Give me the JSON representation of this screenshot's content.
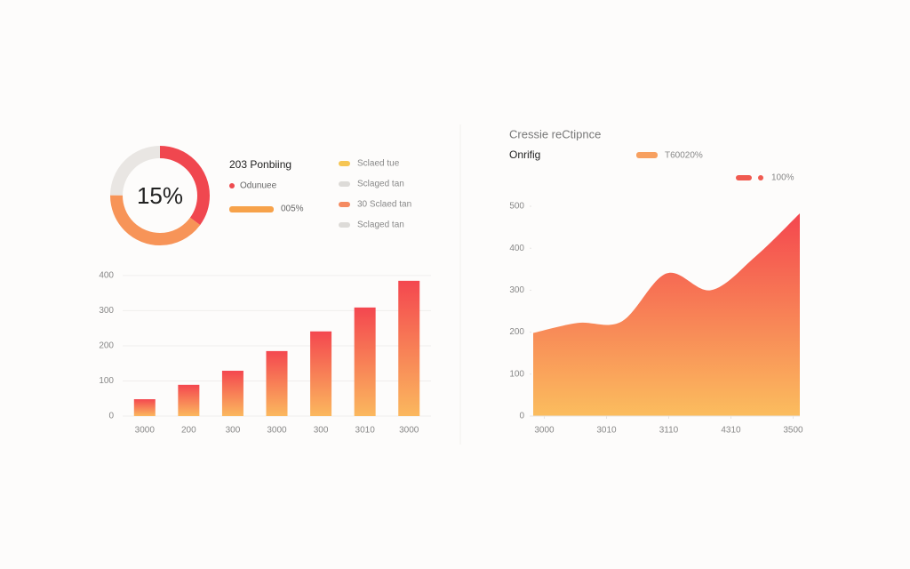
{
  "chart_data": [
    {
      "type": "donut",
      "title": "203 Ponbiing",
      "center_label": "15%",
      "values": [
        35,
        40,
        25
      ],
      "colors": [
        "#f0474f",
        "#f79458",
        "#e9e6e3"
      ],
      "legend": [
        {
          "label": "Odunuee",
          "color": "#ee4b4f"
        },
        {
          "label": "005%",
          "color": "#f7a24a"
        }
      ],
      "side_legend": [
        {
          "label": "Sclaed tue",
          "color": "#f6c654"
        },
        {
          "label": "Sclaged tan",
          "color": "#dddbd8"
        },
        {
          "label": "30 Sclaed tan",
          "color": "#f58a60"
        },
        {
          "label": "Sclaged tan",
          "color": "#dddbd8"
        }
      ]
    },
    {
      "type": "bar",
      "categories": [
        "3000",
        "200",
        "300",
        "3000",
        "300",
        "3010",
        "3000"
      ],
      "values": [
        48,
        89,
        129,
        185,
        241,
        309,
        385
      ],
      "ylim": [
        0,
        420
      ],
      "yticks": [
        0,
        100,
        200,
        300,
        400
      ],
      "grid": true,
      "colors": [
        "#f4474f",
        "#fbb85e"
      ]
    },
    {
      "type": "area",
      "title": "Cressie reCtipnce",
      "subtitle": "Onrifig",
      "legend": [
        {
          "label": "T60020%",
          "color": "#f7a060"
        },
        {
          "label": "100%",
          "color": "#f05a50"
        }
      ],
      "x": [
        0,
        1,
        2,
        3,
        4,
        5,
        6
      ],
      "values": [
        198,
        222,
        226,
        340,
        300,
        380,
        483
      ],
      "xlim": [
        0,
        6
      ],
      "xticks": [
        {
          "value": 0.25,
          "label": "3000"
        },
        {
          "value": 1.65,
          "label": "3010"
        },
        {
          "value": 3.05,
          "label": "3110"
        },
        {
          "value": 4.45,
          "label": "4310"
        },
        {
          "value": 5.85,
          "label": "3500"
        }
      ],
      "ylim": [
        0,
        500
      ],
      "yticks": [
        0,
        100,
        200,
        300,
        400,
        500
      ],
      "colors": [
        "#f4424e",
        "#fbbd5e"
      ]
    }
  ]
}
